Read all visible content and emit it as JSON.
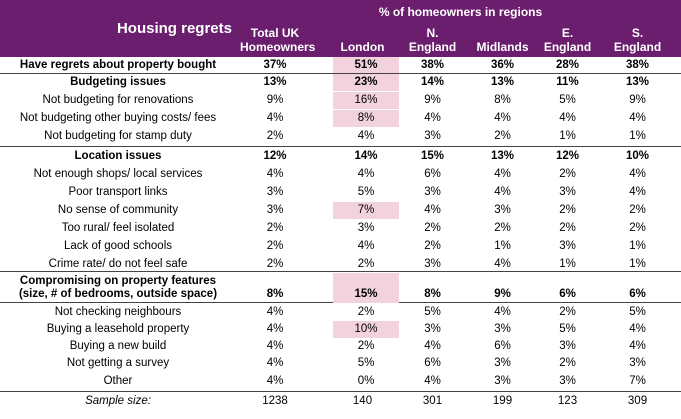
{
  "title": "Housing regrets",
  "super_header": "% of homeowners in regions",
  "columns": [
    "Total UK Homeowners",
    "London",
    "N. England",
    "Midlands",
    "E. England",
    "S. England"
  ],
  "columns_lines": [
    [
      "Total UK",
      "Homeowners"
    ],
    [
      "London"
    ],
    [
      "N.",
      "England"
    ],
    [
      "Midlands"
    ],
    [
      "E.",
      "England"
    ],
    [
      "S.",
      "England"
    ]
  ],
  "rows": [
    {
      "label": "Have regrets about property bought",
      "values": [
        "37%",
        "51%",
        "38%",
        "36%",
        "28%",
        "38%"
      ],
      "bold": true,
      "highlight": [
        1
      ]
    },
    {
      "label": "Budgeting issues",
      "values": [
        "13%",
        "23%",
        "14%",
        "13%",
        "11%",
        "13%"
      ],
      "bold": true,
      "highlight": [
        1
      ]
    },
    {
      "label": "Not budgeting for renovations",
      "values": [
        "9%",
        "16%",
        "9%",
        "8%",
        "5%",
        "9%"
      ],
      "bold": false,
      "highlight": [
        1
      ]
    },
    {
      "label": "Not budgeting other buying costs/ fees",
      "values": [
        "4%",
        "8%",
        "4%",
        "4%",
        "4%",
        "4%"
      ],
      "bold": false,
      "highlight": [
        1
      ]
    },
    {
      "label": "Not budgeting for stamp duty",
      "values": [
        "2%",
        "4%",
        "3%",
        "2%",
        "1%",
        "1%"
      ],
      "bold": false,
      "highlight": []
    },
    {
      "label": "Location issues",
      "values": [
        "12%",
        "14%",
        "15%",
        "13%",
        "12%",
        "10%"
      ],
      "bold": true,
      "highlight": []
    },
    {
      "label": "Not enough shops/ local services",
      "values": [
        "4%",
        "4%",
        "6%",
        "4%",
        "2%",
        "4%"
      ],
      "bold": false,
      "highlight": []
    },
    {
      "label": "Poor transport links",
      "values": [
        "3%",
        "5%",
        "3%",
        "4%",
        "3%",
        "4%"
      ],
      "bold": false,
      "highlight": []
    },
    {
      "label": "No sense of community",
      "values": [
        "3%",
        "7%",
        "4%",
        "3%",
        "2%",
        "2%"
      ],
      "bold": false,
      "highlight": [
        1
      ]
    },
    {
      "label": "Too rural/ feel isolated",
      "values": [
        "2%",
        "3%",
        "2%",
        "2%",
        "2%",
        "2%"
      ],
      "bold": false,
      "highlight": []
    },
    {
      "label": "Lack of good schools",
      "values": [
        "2%",
        "4%",
        "2%",
        "1%",
        "3%",
        "1%"
      ],
      "bold": false,
      "highlight": []
    },
    {
      "label": "Crime rate/ do not feel safe",
      "values": [
        "2%",
        "2%",
        "3%",
        "4%",
        "1%",
        "1%"
      ],
      "bold": false,
      "highlight": []
    },
    {
      "label": "Compromising on property features (size, # of bedrooms, outside space)",
      "label_lines": [
        "Compromising on property features",
        "(size, # of bedrooms, outside space)"
      ],
      "values": [
        "8%",
        "15%",
        "8%",
        "9%",
        "6%",
        "6%"
      ],
      "bold": true,
      "highlight": [
        1
      ]
    },
    {
      "label": "Not checking neighbours",
      "values": [
        "4%",
        "2%",
        "5%",
        "4%",
        "2%",
        "5%"
      ],
      "bold": false,
      "highlight": []
    },
    {
      "label": "Buying a leasehold property",
      "values": [
        "4%",
        "10%",
        "3%",
        "3%",
        "5%",
        "4%"
      ],
      "bold": false,
      "highlight": [
        1
      ]
    },
    {
      "label": "Buying a new build",
      "values": [
        "4%",
        "2%",
        "4%",
        "6%",
        "3%",
        "4%"
      ],
      "bold": false,
      "highlight": []
    },
    {
      "label": "Not getting a survey",
      "values": [
        "4%",
        "5%",
        "6%",
        "3%",
        "2%",
        "3%"
      ],
      "bold": false,
      "highlight": []
    },
    {
      "label": "Other",
      "values": [
        "4%",
        "0%",
        "4%",
        "3%",
        "3%",
        "7%"
      ],
      "bold": false,
      "highlight": []
    }
  ],
  "sample": {
    "label": "Sample size:",
    "values": [
      "1238",
      "140",
      "301",
      "199",
      "123",
      "309"
    ]
  },
  "colors": {
    "header_bg": "#6b1e6e",
    "highlight": "#f2d3dd"
  }
}
